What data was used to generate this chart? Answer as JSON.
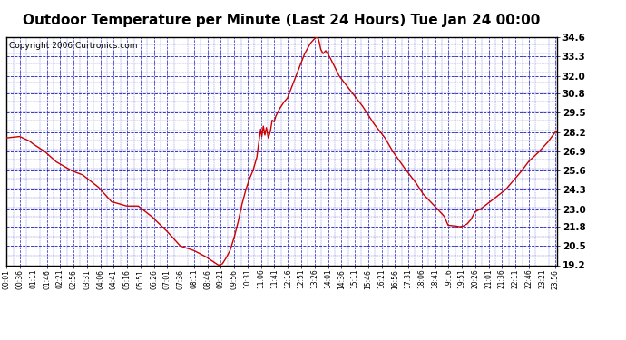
{
  "title": "Outdoor Temperature per Minute (Last 24 Hours) Tue Jan 24 00:00",
  "copyright": "Copyright 2006 Curtronics.com",
  "ylabel_values": [
    19.2,
    20.5,
    21.8,
    23.0,
    24.3,
    25.6,
    26.9,
    28.2,
    29.5,
    30.8,
    32.0,
    33.3,
    34.6
  ],
  "ylim": [
    19.2,
    34.6
  ],
  "background_color": "#ffffff",
  "plot_bg_color": "#ffffff",
  "grid_color": "#0000bb",
  "line_color": "#cc0000",
  "title_fontsize": 11,
  "copyright_fontsize": 6.5,
  "x_tick_labels": [
    "00:01",
    "00:36",
    "01:11",
    "01:46",
    "02:21",
    "02:56",
    "03:31",
    "04:06",
    "04:41",
    "05:16",
    "05:51",
    "06:26",
    "07:01",
    "07:36",
    "08:11",
    "08:46",
    "09:21",
    "09:56",
    "10:31",
    "11:06",
    "11:41",
    "12:16",
    "12:51",
    "13:26",
    "14:01",
    "14:36",
    "15:11",
    "15:46",
    "16:21",
    "16:56",
    "17:31",
    "18:06",
    "18:41",
    "19:16",
    "19:51",
    "20:26",
    "21:01",
    "21:36",
    "22:11",
    "22:46",
    "23:21",
    "23:56"
  ],
  "control_points": [
    [
      0,
      27.8
    ],
    [
      35,
      27.9
    ],
    [
      60,
      27.6
    ],
    [
      70,
      27.4
    ],
    [
      100,
      26.9
    ],
    [
      130,
      26.2
    ],
    [
      170,
      25.6
    ],
    [
      200,
      25.3
    ],
    [
      240,
      24.5
    ],
    [
      275,
      23.5
    ],
    [
      315,
      23.2
    ],
    [
      345,
      23.2
    ],
    [
      380,
      22.5
    ],
    [
      420,
      21.5
    ],
    [
      455,
      20.5
    ],
    [
      490,
      20.2
    ],
    [
      520,
      19.8
    ],
    [
      555,
      19.2
    ],
    [
      565,
      19.3
    ],
    [
      575,
      19.7
    ],
    [
      585,
      20.2
    ],
    [
      595,
      21.0
    ],
    [
      605,
      22.0
    ],
    [
      615,
      23.2
    ],
    [
      625,
      24.2
    ],
    [
      635,
      25.0
    ],
    [
      645,
      25.6
    ],
    [
      655,
      26.5
    ],
    [
      660,
      27.5
    ],
    [
      665,
      28.4
    ],
    [
      668,
      27.9
    ],
    [
      672,
      28.6
    ],
    [
      676,
      28.0
    ],
    [
      680,
      28.5
    ],
    [
      685,
      27.8
    ],
    [
      690,
      28.2
    ],
    [
      695,
      29.0
    ],
    [
      700,
      28.9
    ],
    [
      705,
      29.3
    ],
    [
      715,
      29.8
    ],
    [
      725,
      30.2
    ],
    [
      735,
      30.5
    ],
    [
      750,
      31.5
    ],
    [
      765,
      32.5
    ],
    [
      780,
      33.5
    ],
    [
      795,
      34.2
    ],
    [
      805,
      34.5
    ],
    [
      810,
      34.6
    ],
    [
      815,
      34.55
    ],
    [
      818,
      34.3
    ],
    [
      822,
      33.8
    ],
    [
      828,
      33.5
    ],
    [
      835,
      33.7
    ],
    [
      845,
      33.3
    ],
    [
      855,
      32.8
    ],
    [
      870,
      32.0
    ],
    [
      900,
      31.0
    ],
    [
      930,
      30.0
    ],
    [
      960,
      28.8
    ],
    [
      990,
      27.8
    ],
    [
      1010,
      26.9
    ],
    [
      1040,
      25.8
    ],
    [
      1070,
      24.8
    ],
    [
      1090,
      24.0
    ],
    [
      1120,
      23.2
    ],
    [
      1145,
      22.5
    ],
    [
      1155,
      21.9
    ],
    [
      1175,
      21.85
    ],
    [
      1185,
      21.8
    ],
    [
      1195,
      21.85
    ],
    [
      1205,
      22.0
    ],
    [
      1215,
      22.3
    ],
    [
      1225,
      22.8
    ],
    [
      1240,
      23.0
    ],
    [
      1255,
      23.3
    ],
    [
      1270,
      23.6
    ],
    [
      1290,
      24.0
    ],
    [
      1305,
      24.3
    ],
    [
      1325,
      24.9
    ],
    [
      1345,
      25.5
    ],
    [
      1365,
      26.2
    ],
    [
      1390,
      26.8
    ],
    [
      1415,
      27.5
    ],
    [
      1435,
      28.2
    ]
  ]
}
